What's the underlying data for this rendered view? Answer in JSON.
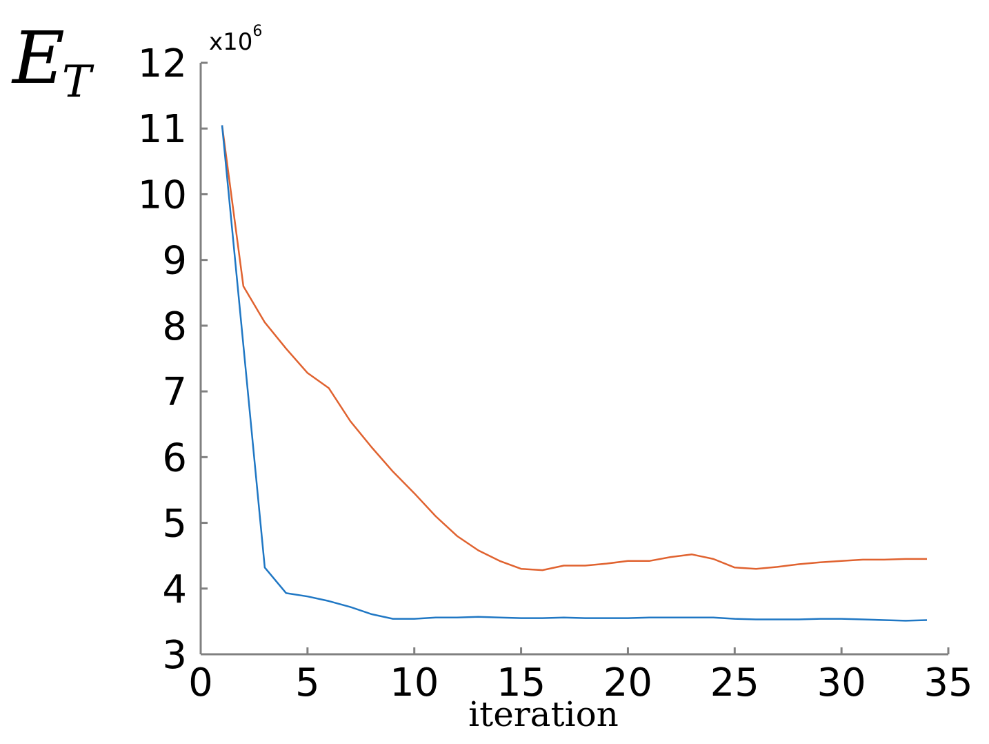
{
  "chart_data": {
    "type": "line",
    "xlabel": "iteration",
    "ylabel": "E",
    "ylabel_subscript": "T",
    "y_multiplier": "x10",
    "y_multiplier_exponent": "6",
    "xlim": [
      0,
      35
    ],
    "ylim": [
      3,
      12
    ],
    "xticks": [
      0,
      5,
      10,
      15,
      20,
      25,
      30,
      35
    ],
    "yticks": [
      3,
      4,
      5,
      6,
      7,
      8,
      9,
      10,
      11,
      12
    ],
    "grid": false,
    "colors": {
      "axis": "#808080",
      "blue": "#1f77c4",
      "orange": "#e0622f"
    },
    "series": [
      {
        "color": "#e0622f",
        "x": [
          1,
          2,
          3,
          4,
          5,
          6,
          7,
          8,
          9,
          10,
          11,
          12,
          13,
          14,
          15,
          16,
          17,
          18,
          19,
          20,
          21,
          22,
          23,
          24,
          25,
          26,
          27,
          28,
          29,
          30,
          31,
          32,
          33,
          34
        ],
        "values": [
          11.05,
          8.6,
          8.05,
          7.65,
          7.28,
          7.05,
          6.55,
          6.15,
          5.78,
          5.45,
          5.1,
          4.8,
          4.58,
          4.42,
          4.3,
          4.28,
          4.35,
          4.35,
          4.38,
          4.42,
          4.42,
          4.48,
          4.52,
          4.45,
          4.32,
          4.3,
          4.33,
          4.37,
          4.4,
          4.42,
          4.44,
          4.44,
          4.45,
          4.45
        ]
      },
      {
        "color": "#1f77c4",
        "x": [
          1,
          2,
          3,
          4,
          5,
          6,
          7,
          8,
          9,
          10,
          11,
          12,
          13,
          14,
          15,
          16,
          17,
          18,
          19,
          20,
          21,
          22,
          23,
          24,
          25,
          26,
          27,
          28,
          29,
          30,
          31,
          32,
          33,
          34
        ],
        "values": [
          11.05,
          7.7,
          4.32,
          3.93,
          3.88,
          3.81,
          3.72,
          3.61,
          3.54,
          3.54,
          3.56,
          3.56,
          3.57,
          3.56,
          3.55,
          3.55,
          3.56,
          3.55,
          3.55,
          3.55,
          3.56,
          3.56,
          3.56,
          3.56,
          3.54,
          3.53,
          3.53,
          3.53,
          3.54,
          3.54,
          3.53,
          3.52,
          3.51,
          3.52
        ]
      }
    ]
  }
}
